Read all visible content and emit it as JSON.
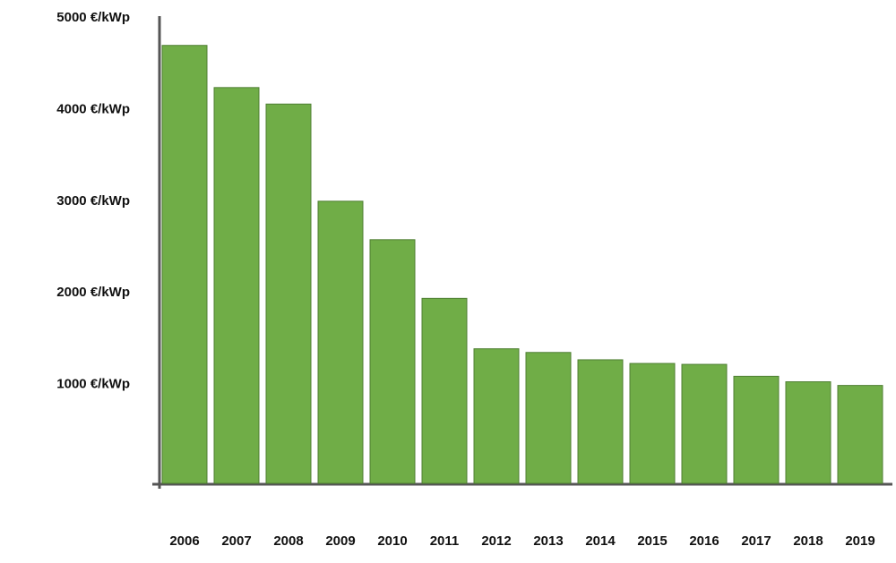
{
  "chart_data": {
    "type": "bar",
    "categories": [
      "2006",
      "2007",
      "2008",
      "2009",
      "2010",
      "2011",
      "2012",
      "2013",
      "2014",
      "2015",
      "2016",
      "2017",
      "2018",
      "2019"
    ],
    "values": [
      4700,
      4240,
      4060,
      3000,
      2580,
      1940,
      1390,
      1350,
      1270,
      1230,
      1220,
      1090,
      1030,
      990
    ],
    "color": "#70ad47",
    "ylim": [
      0,
      5000
    ],
    "yticks": [
      {
        "value": 1000,
        "label": "1000 €/kWp"
      },
      {
        "value": 2000,
        "label": "2000 €/kWp"
      },
      {
        "value": 3000,
        "label": "3000 €/kWp"
      },
      {
        "value": 4000,
        "label": "4000 €/kWp"
      },
      {
        "value": 5000,
        "label": "5000 €/kWp"
      }
    ],
    "grid": false
  }
}
